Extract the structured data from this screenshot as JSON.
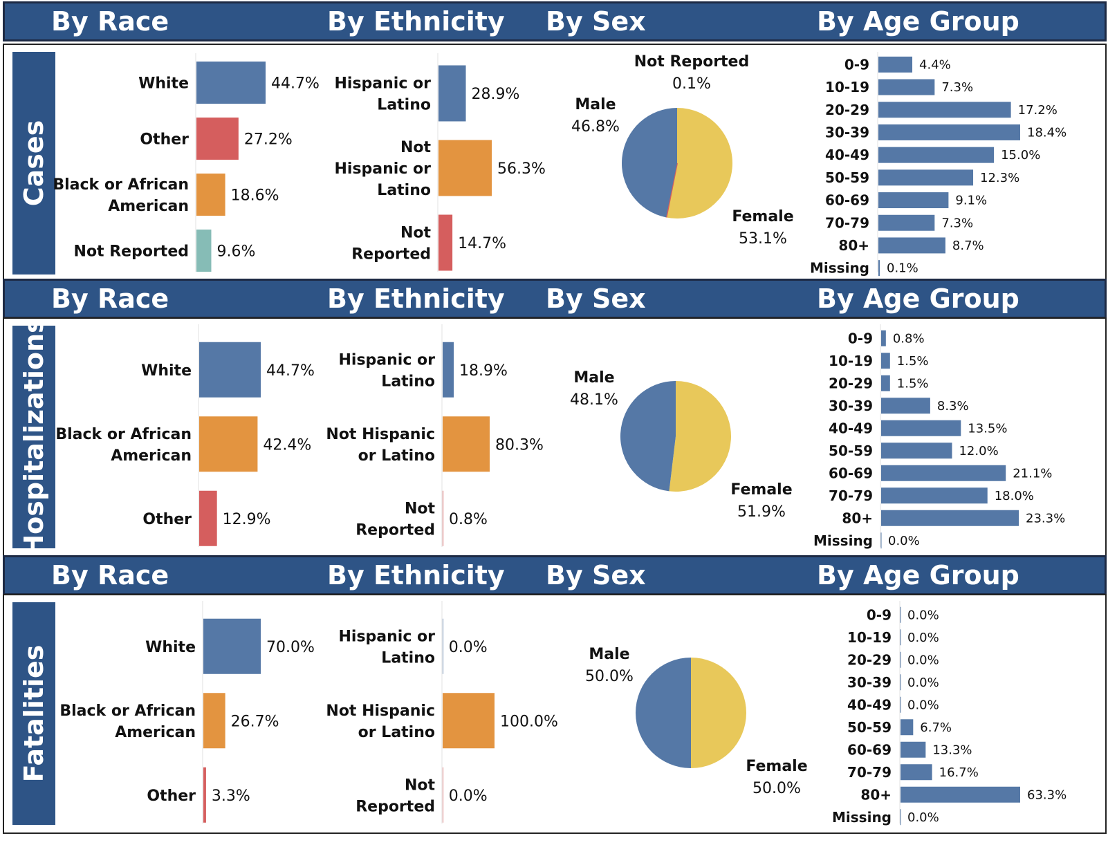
{
  "headers": {
    "race": "By Race",
    "ethnicity": "By Ethnicity",
    "sex": "By Sex",
    "age": "By Age Group"
  },
  "colors": {
    "header": "#2e5486",
    "blue": "#5578a6",
    "orange": "#e39440",
    "red": "#d55e5e",
    "teal": "#86bcb6",
    "yellow": "#e8c85a"
  },
  "sections": [
    {
      "label": "Cases"
    },
    {
      "label": "Hospitalizations"
    },
    {
      "label": "Fatalities"
    }
  ],
  "chart_data": [
    {
      "section": 0,
      "chart": "race",
      "type": "bar",
      "categories": [
        [
          "White"
        ],
        [
          "Other"
        ],
        [
          "Black or African",
          "American"
        ],
        [
          "Not Reported"
        ]
      ],
      "values": [
        44.7,
        27.2,
        18.6,
        9.6
      ],
      "labels": [
        "44.7%",
        "27.2%",
        "18.6%",
        "9.6%"
      ],
      "colors": [
        "#5578a6",
        "#d55e5e",
        "#e39440",
        "#86bcb6"
      ]
    },
    {
      "section": 0,
      "chart": "ethnicity",
      "type": "bar",
      "categories": [
        [
          "Hispanic or",
          "Latino"
        ],
        [
          "Not",
          "Hispanic or",
          "Latino"
        ],
        [
          "Not",
          "Reported"
        ]
      ],
      "values": [
        28.9,
        56.3,
        14.7
      ],
      "labels": [
        "28.9%",
        "56.3%",
        "14.7%"
      ],
      "colors": [
        "#5578a6",
        "#e39440",
        "#d55e5e"
      ]
    },
    {
      "section": 0,
      "chart": "sex",
      "type": "pie",
      "categories": [
        "Female",
        "Not Reported",
        "Male"
      ],
      "values": [
        53.1,
        0.1,
        46.8
      ],
      "labels": [
        "53.1%",
        "0.1%",
        "46.8%"
      ],
      "colors": [
        "#e8c85a",
        "#d55e5e",
        "#5578a6"
      ]
    },
    {
      "section": 0,
      "chart": "age",
      "type": "bar",
      "categories": [
        "0-9",
        "10-19",
        "20-29",
        "30-39",
        "40-49",
        "50-59",
        "60-69",
        "70-79",
        "80+",
        "Missing"
      ],
      "values": [
        4.4,
        7.3,
        17.2,
        18.4,
        15.0,
        12.3,
        9.1,
        7.3,
        8.7,
        0.1
      ],
      "labels": [
        "4.4%",
        "7.3%",
        "17.2%",
        "18.4%",
        "15.0%",
        "12.3%",
        "9.1%",
        "7.3%",
        "8.7%",
        "0.1%"
      ]
    },
    {
      "section": 1,
      "chart": "race",
      "type": "bar",
      "categories": [
        [
          "White"
        ],
        [
          "Black or African",
          "American"
        ],
        [
          "Other"
        ]
      ],
      "values": [
        44.7,
        42.4,
        12.9
      ],
      "labels": [
        "44.7%",
        "42.4%",
        "12.9%"
      ],
      "colors": [
        "#5578a6",
        "#e39440",
        "#d55e5e"
      ]
    },
    {
      "section": 1,
      "chart": "ethnicity",
      "type": "bar",
      "categories": [
        [
          "Hispanic or",
          "Latino"
        ],
        [
          "Not Hispanic",
          "or Latino"
        ],
        [
          "Not",
          "Reported"
        ]
      ],
      "values": [
        18.9,
        80.3,
        0.8
      ],
      "labels": [
        "18.9%",
        "80.3%",
        "0.8%"
      ],
      "colors": [
        "#5578a6",
        "#e39440",
        "#d55e5e"
      ]
    },
    {
      "section": 1,
      "chart": "sex",
      "type": "pie",
      "categories": [
        "Female",
        "Male"
      ],
      "values": [
        51.9,
        48.1
      ],
      "labels": [
        "51.9%",
        "48.1%"
      ],
      "colors": [
        "#e8c85a",
        "#5578a6"
      ]
    },
    {
      "section": 1,
      "chart": "age",
      "type": "bar",
      "categories": [
        "0-9",
        "10-19",
        "20-29",
        "30-39",
        "40-49",
        "50-59",
        "60-69",
        "70-79",
        "80+",
        "Missing"
      ],
      "values": [
        0.8,
        1.5,
        1.5,
        8.3,
        13.5,
        12.0,
        21.1,
        18.0,
        23.3,
        0.0
      ],
      "labels": [
        "0.8%",
        "1.5%",
        "1.5%",
        "8.3%",
        "13.5%",
        "12.0%",
        "21.1%",
        "18.0%",
        "23.3%",
        "0.0%"
      ]
    },
    {
      "section": 2,
      "chart": "race",
      "type": "bar",
      "categories": [
        [
          "White"
        ],
        [
          "Black or African",
          "American"
        ],
        [
          "Other"
        ]
      ],
      "values": [
        70.0,
        26.7,
        3.3
      ],
      "labels": [
        "70.0%",
        "26.7%",
        "3.3%"
      ],
      "colors": [
        "#5578a6",
        "#e39440",
        "#d55e5e"
      ]
    },
    {
      "section": 2,
      "chart": "ethnicity",
      "type": "bar",
      "categories": [
        [
          "Hispanic or",
          "Latino"
        ],
        [
          "Not Hispanic",
          "or Latino"
        ],
        [
          "Not",
          "Reported"
        ]
      ],
      "values": [
        0.0,
        100.0,
        0.0
      ],
      "labels": [
        "0.0%",
        "100.0%",
        "0.0%"
      ],
      "colors": [
        "#5578a6",
        "#e39440",
        "#d55e5e"
      ]
    },
    {
      "section": 2,
      "chart": "sex",
      "type": "pie",
      "categories": [
        "Female",
        "Male"
      ],
      "values": [
        50.0,
        50.0
      ],
      "labels": [
        "50.0%",
        "50.0%"
      ],
      "colors": [
        "#e8c85a",
        "#5578a6"
      ]
    },
    {
      "section": 2,
      "chart": "age",
      "type": "bar",
      "categories": [
        "0-9",
        "10-19",
        "20-29",
        "30-39",
        "40-49",
        "50-59",
        "60-69",
        "70-79",
        "80+",
        "Missing"
      ],
      "values": [
        0.0,
        0.0,
        0.0,
        0.0,
        0.0,
        6.7,
        13.3,
        16.7,
        63.3,
        0.0
      ],
      "labels": [
        "0.0%",
        "0.0%",
        "0.0%",
        "0.0%",
        "0.0%",
        "6.7%",
        "13.3%",
        "16.7%",
        "63.3%",
        "0.0%"
      ]
    }
  ]
}
